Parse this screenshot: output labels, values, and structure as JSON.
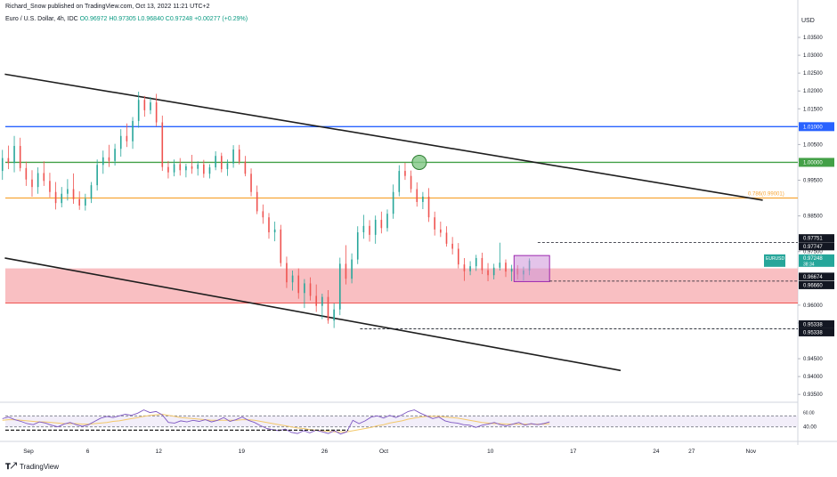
{
  "header": {
    "publisher": "Richard_Snow published on TradingView.com, Oct 13, 2022 11:21 UTC+2",
    "instrument": "Euro / U.S. Dollar, 4h, IDC",
    "ohlc": "O0.96972 H0.97305 L0.96840 C0.97248 +0.00277 (+0.29%)"
  },
  "watermark": {
    "text": "TradingView",
    "icon": "tradingview-logo-icon"
  },
  "colors": {
    "up": "#26a69a",
    "down": "#ef5350",
    "blue_line": "#2962ff",
    "green_line": "#43a047",
    "orange_line": "#f7a536",
    "zone_fill": "#f7a9ae",
    "range_box": "#ce93d8",
    "rsi_line": "#7e57c2",
    "rsi_ma": "#f3c86a"
  },
  "chart_data": {
    "type": "candlestick",
    "currency_label": "USD",
    "y_ticks": [
      1.035,
      1.03,
      1.025,
      1.02,
      1.015,
      1.005,
      0.995,
      0.985,
      0.975,
      0.96,
      0.955,
      0.945,
      0.94,
      0.935
    ],
    "y_tick_labels": [
      "1.03500",
      "1.03000",
      "1.02500",
      "1.02000",
      "1.01500",
      "1.00500",
      "0.99500",
      "0.98500",
      "0.97500",
      "0.96000",
      "0.95500",
      "0.94500",
      "0.94000",
      "0.93500"
    ],
    "x_labels": [
      "Sep",
      "6",
      "12",
      "19",
      "26",
      "Oct",
      "10",
      "17",
      "24",
      "27",
      "Nov"
    ],
    "x_label_days": [
      1,
      6,
      12,
      19,
      26,
      31,
      40,
      47,
      54,
      57,
      62
    ],
    "x_label_dates": [
      "2022-09-01",
      "2022-09-06",
      "2022-09-12",
      "2022-09-19",
      "2022-09-26",
      "2022-10-01",
      "2022-10-10",
      "2022-10-17",
      "2022-10-24",
      "2022-10-27",
      "2022-11-01"
    ],
    "ylim": [
      0.9338,
      1.0385
    ],
    "horizontal_lines": [
      {
        "price": 1.01,
        "label": "1.01000",
        "color": "#2962ff"
      },
      {
        "price": 1.0,
        "label": "1.00000",
        "color": "#43a047"
      },
      {
        "price": 0.99001,
        "label": "0.786(0.99001)",
        "color": "#f7a536"
      }
    ],
    "support_zone": [
      0.9606,
      0.9703
    ],
    "dashed_levels": [
      {
        "price": 0.97751,
        "label": "0.97751"
      },
      {
        "price": 0.97747,
        "label": "0.97747"
      },
      {
        "price": 0.96674,
        "label": "0.96674"
      },
      {
        "price": 0.9666,
        "label": "0.96660"
      },
      {
        "price": 0.95338,
        "label": "0.95338"
      },
      {
        "price": 0.95338,
        "label": "0.95338"
      }
    ],
    "last_price": {
      "price": 0.97248,
      "symbol": "EURUSD",
      "value": "0.97248",
      "countdown": "38:34"
    },
    "trendlines": [
      {
        "from": {
          "date": "2022-08-30",
          "price": 1.0247
        },
        "to": {
          "date": "2022-11-02",
          "price": 0.9894
        }
      },
      {
        "from": {
          "date": "2022-08-30",
          "price": 0.9732
        },
        "to": {
          "date": "2022-10-21",
          "price": 0.9417
        }
      }
    ],
    "range_box": {
      "from": "2022-10-12",
      "to": "2022-10-15",
      "high": 0.9739,
      "low": 0.9666
    },
    "circle_marker": {
      "date": "2022-10-04",
      "price": 1.0
    },
    "candles": [
      [
        0.9976,
        1.0035,
        0.9951,
        1.0012
      ],
      [
        1.0012,
        1.0047,
        0.9981,
        0.9998
      ],
      [
        0.9998,
        1.0074,
        0.9972,
        1.0046
      ],
      [
        1.0046,
        1.0069,
        0.9975,
        0.9984
      ],
      [
        0.9984,
        1.0002,
        0.9934,
        0.9952
      ],
      [
        0.9952,
        0.9978,
        0.9904,
        0.9931
      ],
      [
        0.9931,
        0.9986,
        0.9912,
        0.997
      ],
      [
        0.997,
        1.0003,
        0.9934,
        0.9948
      ],
      [
        0.9948,
        0.9971,
        0.9902,
        0.9917
      ],
      [
        0.9917,
        0.9945,
        0.9868,
        0.9886
      ],
      [
        0.9886,
        0.9931,
        0.9874,
        0.9912
      ],
      [
        0.9912,
        0.9953,
        0.9893,
        0.9925
      ],
      [
        0.9925,
        0.9969,
        0.9884,
        0.9897
      ],
      [
        0.9897,
        0.9919,
        0.9867,
        0.9879
      ],
      [
        0.9879,
        0.9912,
        0.9865,
        0.9898
      ],
      [
        0.9898,
        0.9945,
        0.9886,
        0.9936
      ],
      [
        0.9936,
        1.0008,
        0.9921,
        0.9993
      ],
      [
        0.9993,
        1.0033,
        0.9968,
        1.0014
      ],
      [
        1.0014,
        1.0049,
        0.9987,
        1.0004
      ],
      [
        1.0004,
        1.0052,
        0.9991,
        1.0038
      ],
      [
        1.0038,
        1.0093,
        1.0016,
        1.0074
      ],
      [
        1.0074,
        1.0109,
        1.0043,
        1.0059
      ],
      [
        1.0059,
        1.0127,
        1.0038,
        1.0116
      ],
      [
        1.0116,
        1.0198,
        1.0097,
        1.0175
      ],
      [
        1.0175,
        1.0186,
        1.0128,
        1.0146
      ],
      [
        1.0146,
        1.0183,
        1.0135,
        1.0168
      ],
      [
        1.0168,
        1.0192,
        1.0101,
        1.0112
      ],
      [
        1.0112,
        1.0131,
        0.9976,
        0.9987
      ],
      [
        0.9987,
        1.0004,
        0.9955,
        0.9972
      ],
      [
        0.9972,
        1.0008,
        0.9961,
        0.9995
      ],
      [
        0.9995,
        1.0012,
        0.9963,
        0.9978
      ],
      [
        0.9978,
        0.9996,
        0.9958,
        0.9989
      ],
      [
        0.9989,
        1.0021,
        0.9968,
        0.9982
      ],
      [
        0.9982,
        1.0003,
        0.9963,
        0.9994
      ],
      [
        0.9994,
        1.0007,
        0.9957,
        0.9968
      ],
      [
        0.9968,
        0.9995,
        0.9955,
        0.9986
      ],
      [
        0.9986,
        1.0031,
        0.9978,
        1.0018
      ],
      [
        1.0018,
        1.0027,
        0.9972,
        0.9981
      ],
      [
        0.9981,
        1.0008,
        0.9962,
        0.9997
      ],
      [
        0.9997,
        1.0048,
        0.9985,
        1.0036
      ],
      [
        1.0036,
        1.0049,
        0.9994,
        1.0002
      ],
      [
        1.0002,
        1.0018,
        0.9961,
        0.9968
      ],
      [
        0.9968,
        0.9983,
        0.9905,
        0.9917
      ],
      [
        0.9917,
        0.9935,
        0.9855,
        0.9863
      ],
      [
        0.9863,
        0.9882,
        0.9828,
        0.9846
      ],
      [
        0.9846,
        0.9858,
        0.9786,
        0.9804
      ],
      [
        0.9804,
        0.9834,
        0.9779,
        0.9812
      ],
      [
        0.9812,
        0.9825,
        0.9708,
        0.9718
      ],
      [
        0.9718,
        0.9736,
        0.9648,
        0.9664
      ],
      [
        0.9664,
        0.9697,
        0.9641,
        0.9683
      ],
      [
        0.9683,
        0.9703,
        0.9618,
        0.9634
      ],
      [
        0.9634,
        0.9673,
        0.9592,
        0.9661
      ],
      [
        0.9661,
        0.9678,
        0.9613,
        0.9626
      ],
      [
        0.9626,
        0.9658,
        0.9581,
        0.9598
      ],
      [
        0.9598,
        0.9632,
        0.9561,
        0.9623
      ],
      [
        0.9623,
        0.9642,
        0.9548,
        0.9557
      ],
      [
        0.9557,
        0.9605,
        0.9536,
        0.9588
      ],
      [
        0.9588,
        0.9733,
        0.9572,
        0.9716
      ],
      [
        0.9716,
        0.9768,
        0.9658,
        0.9674
      ],
      [
        0.9674,
        0.9745,
        0.9661,
        0.9728
      ],
      [
        0.9728,
        0.9821,
        0.9715,
        0.9804
      ],
      [
        0.9804,
        0.9853,
        0.9786,
        0.9822
      ],
      [
        0.9822,
        0.9838,
        0.9778,
        0.9797
      ],
      [
        0.9797,
        0.9851,
        0.9772,
        0.9839
      ],
      [
        0.9839,
        0.9862,
        0.9801,
        0.9816
      ],
      [
        0.9816,
        0.9868,
        0.9806,
        0.9856
      ],
      [
        0.9856,
        0.9938,
        0.9842,
        0.9917
      ],
      [
        0.9917,
        0.9992,
        0.9905,
        0.9976
      ],
      [
        0.9976,
        0.9999,
        0.9951,
        0.9962
      ],
      [
        0.9962,
        0.9977,
        0.9915,
        0.9925
      ],
      [
        0.9925,
        0.9944,
        0.9876,
        0.9889
      ],
      [
        0.9889,
        0.9917,
        0.9869,
        0.9904
      ],
      [
        0.9904,
        0.9928,
        0.9833,
        0.9846
      ],
      [
        0.9846,
        0.9862,
        0.9795,
        0.9812
      ],
      [
        0.9812,
        0.9834,
        0.9791,
        0.9803
      ],
      [
        0.9803,
        0.9821,
        0.9764,
        0.9772
      ],
      [
        0.9772,
        0.9791,
        0.9742,
        0.9758
      ],
      [
        0.9758,
        0.9774,
        0.9703,
        0.9714
      ],
      [
        0.9714,
        0.9732,
        0.9668,
        0.9695
      ],
      [
        0.9695,
        0.9723,
        0.9684,
        0.9709
      ],
      [
        0.9709,
        0.9741,
        0.9696,
        0.9732
      ],
      [
        0.9732,
        0.9747,
        0.9687,
        0.9698
      ],
      [
        0.9698,
        0.9718,
        0.9667,
        0.9684
      ],
      [
        0.9684,
        0.9716,
        0.9672,
        0.9705
      ],
      [
        0.9705,
        0.9775,
        0.9697,
        0.9719
      ],
      [
        0.9719,
        0.9728,
        0.9679,
        0.9694
      ],
      [
        0.9694,
        0.9713,
        0.9667,
        0.9702
      ],
      [
        0.9702,
        0.9712,
        0.9672,
        0.9686
      ],
      [
        0.9686,
        0.9708,
        0.9669,
        0.9697
      ],
      [
        0.9697,
        0.9731,
        0.9684,
        0.9725
      ]
    ],
    "rsi": {
      "labels": [
        "60.00",
        "40.00"
      ],
      "levels": [
        60,
        40
      ],
      "rsi_values": [
        55,
        58,
        53,
        50,
        46,
        44,
        49,
        47,
        43,
        40,
        45,
        48,
        44,
        41,
        44,
        50,
        56,
        59,
        57,
        60,
        63,
        61,
        65,
        71,
        66,
        68,
        62,
        48,
        47,
        51,
        49,
        52,
        50,
        53,
        49,
        52,
        57,
        50,
        53,
        58,
        52,
        48,
        42,
        37,
        35,
        33,
        36,
        30,
        28,
        33,
        29,
        34,
        31,
        28,
        33,
        27,
        31,
        52,
        46,
        51,
        58,
        60,
        56,
        61,
        57,
        62,
        68,
        71,
        65,
        60,
        55,
        58,
        51,
        48,
        47,
        44,
        43,
        39,
        43,
        45,
        48,
        44,
        42,
        45,
        48,
        43,
        46,
        44,
        46,
        49
      ],
      "ma_values": [
        52,
        53,
        53,
        52,
        51,
        50,
        49,
        49,
        48,
        47,
        46,
        46,
        46,
        45,
        45,
        46,
        47,
        48,
        50,
        51,
        53,
        55,
        57,
        59,
        61,
        62,
        63,
        61,
        59,
        57,
        56,
        55,
        54,
        53,
        52,
        52,
        52,
        52,
        52,
        53,
        53,
        52,
        50,
        48,
        46,
        44,
        42,
        40,
        38,
        37,
        35,
        34,
        33,
        32,
        31,
        31,
        31,
        33,
        35,
        37,
        39,
        42,
        44,
        47,
        49,
        51,
        54,
        56,
        58,
        59,
        59,
        59,
        58,
        57,
        56,
        54,
        52,
        50,
        48,
        47,
        46,
        46,
        45,
        45,
        45,
        45,
        45,
        45,
        45,
        46
      ]
    }
  }
}
